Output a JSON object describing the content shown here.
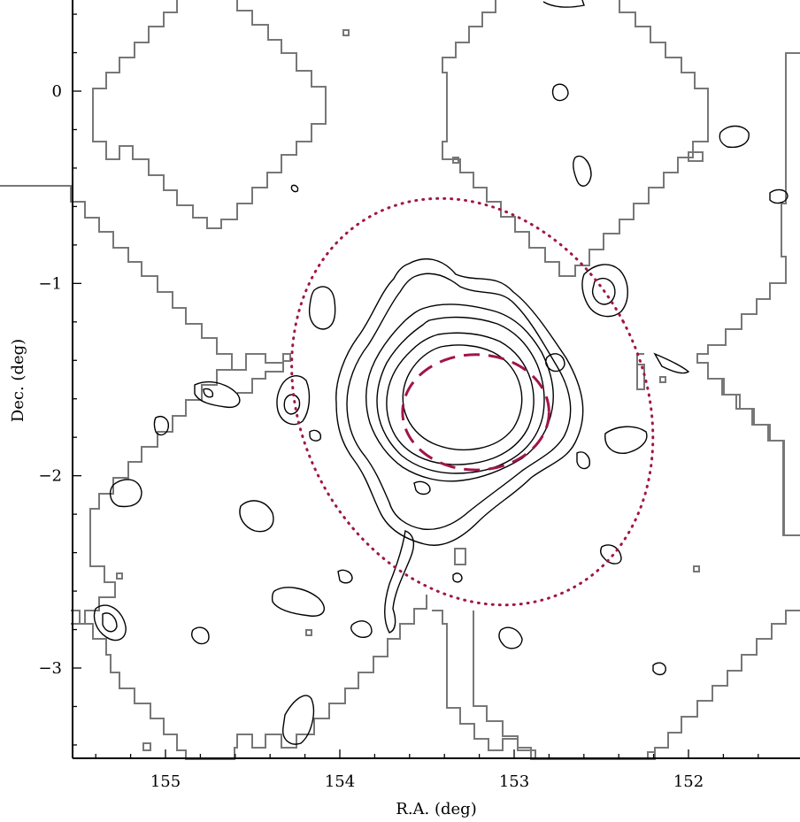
{
  "chart_data": {
    "type": "contour",
    "xlabel": "R.A. (deg)",
    "ylabel": "Dec. (deg)",
    "xlim": [
      155.52,
      151.5
    ],
    "ylim": [
      -3.47,
      0.47
    ],
    "x_reversed": true,
    "xticks": [
      155,
      154,
      153,
      152
    ],
    "xtick_labels": [
      "155",
      "154",
      "153",
      "152"
    ],
    "yticks": [
      0,
      -1,
      -2,
      -3
    ],
    "ytick_labels": [
      "0",
      "−1",
      "−2",
      "−3"
    ],
    "grid": false,
    "colors": {
      "contours": "#000000",
      "footprint": "#777777",
      "ellipse": "#a0154a"
    },
    "series": [
      {
        "kind": "dotted-ellipse",
        "center": [
          153.24,
          -1.615
        ],
        "semi_axes_deg": [
          0.98,
          1.1
        ],
        "angle_deg": -28
      },
      {
        "kind": "dashed-circle",
        "center": [
          153.22,
          -1.67
        ],
        "semi_axes_deg": [
          0.42,
          0.3
        ],
        "angle_deg": 0
      },
      {
        "kind": "central-contour-levels",
        "center": [
          153.25,
          -1.7
        ],
        "levels": 6
      }
    ]
  }
}
